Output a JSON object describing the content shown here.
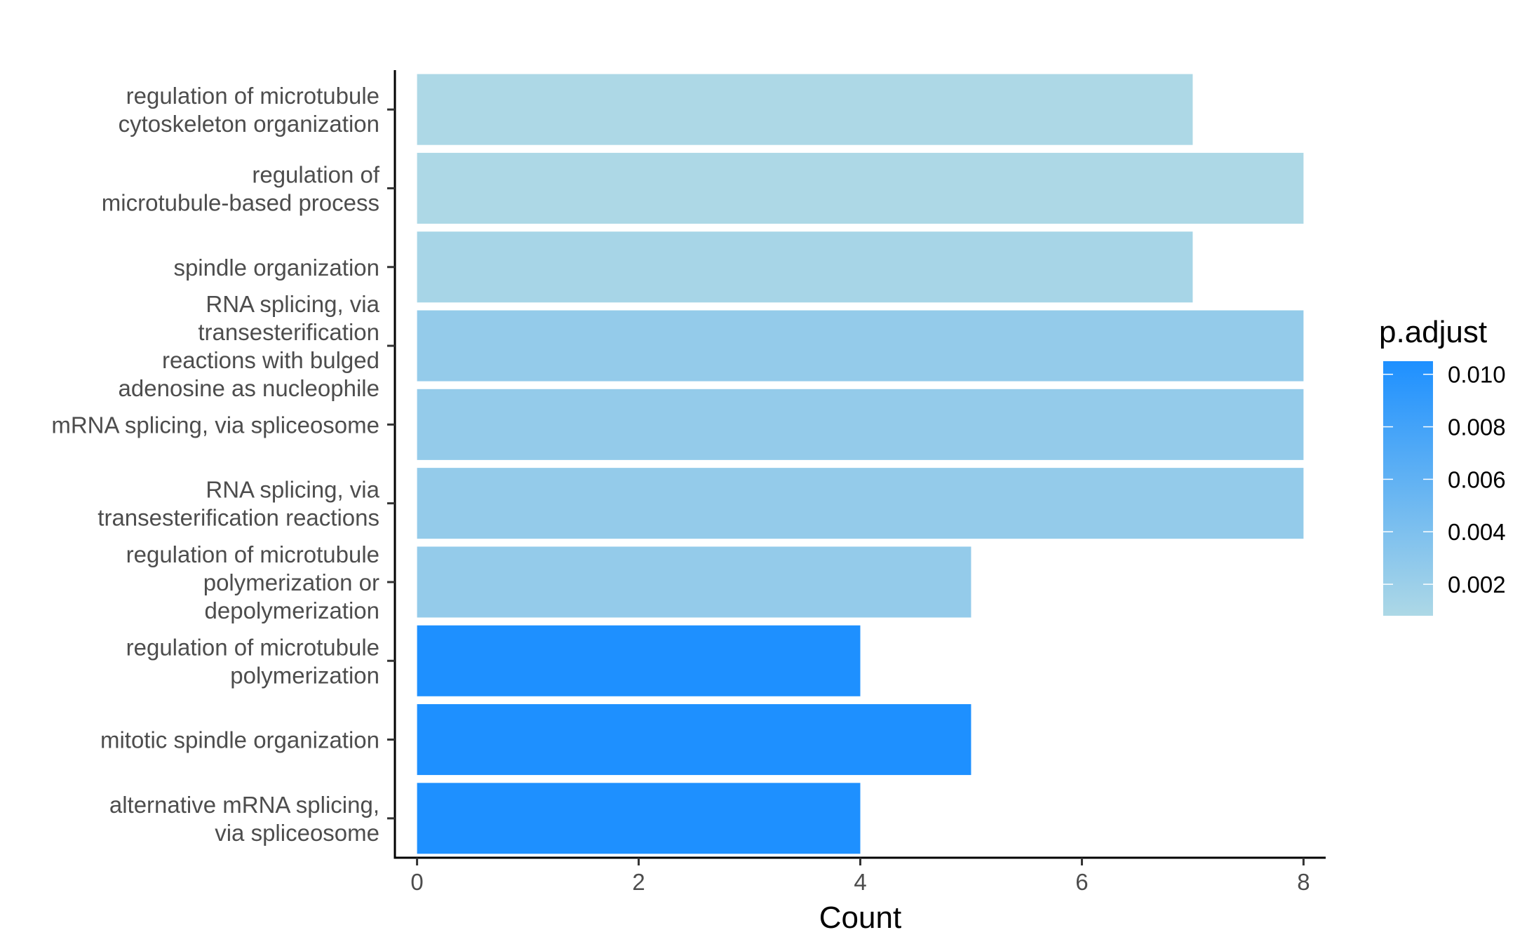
{
  "chart_data": {
    "type": "bar",
    "orientation": "horizontal",
    "categories": [
      [
        "regulation of microtubule",
        "cytoskeleton organization"
      ],
      [
        "regulation of",
        "microtubule-based process"
      ],
      [
        "spindle organization"
      ],
      [
        "RNA splicing, via",
        "transesterification",
        "reactions with bulged",
        "adenosine as nucleophile"
      ],
      [
        "mRNA splicing, via spliceosome"
      ],
      [
        "RNA splicing, via",
        "transesterification reactions"
      ],
      [
        "regulation of microtubule",
        "polymerization or",
        "depolymerization"
      ],
      [
        "regulation of microtubule",
        "polymerization"
      ],
      [
        "mitotic spindle organization"
      ],
      [
        "alternative mRNA splicing,",
        "via spliceosome"
      ]
    ],
    "values": [
      7,
      8,
      7,
      8,
      8,
      8,
      5,
      4,
      5,
      4
    ],
    "p_adjust": [
      0.0008,
      0.0008,
      0.0012,
      0.0025,
      0.0025,
      0.0025,
      0.0025,
      0.0105,
      0.0105,
      0.0105
    ],
    "xlabel": "Count",
    "xlim": [
      -0.2,
      8.2
    ],
    "x_ticks": [
      0,
      2,
      4,
      6,
      8
    ],
    "legend": {
      "title": "p.adjust",
      "position": "right",
      "range": [
        0.0008,
        0.0105
      ],
      "ticks": [
        0.002,
        0.004,
        0.006,
        0.008,
        0.01
      ],
      "tick_labels": [
        "0.002",
        "0.004",
        "0.006",
        "0.008",
        "0.010"
      ],
      "low_color": "#add8e6",
      "high_color": "#1e90ff"
    },
    "grid": false
  }
}
